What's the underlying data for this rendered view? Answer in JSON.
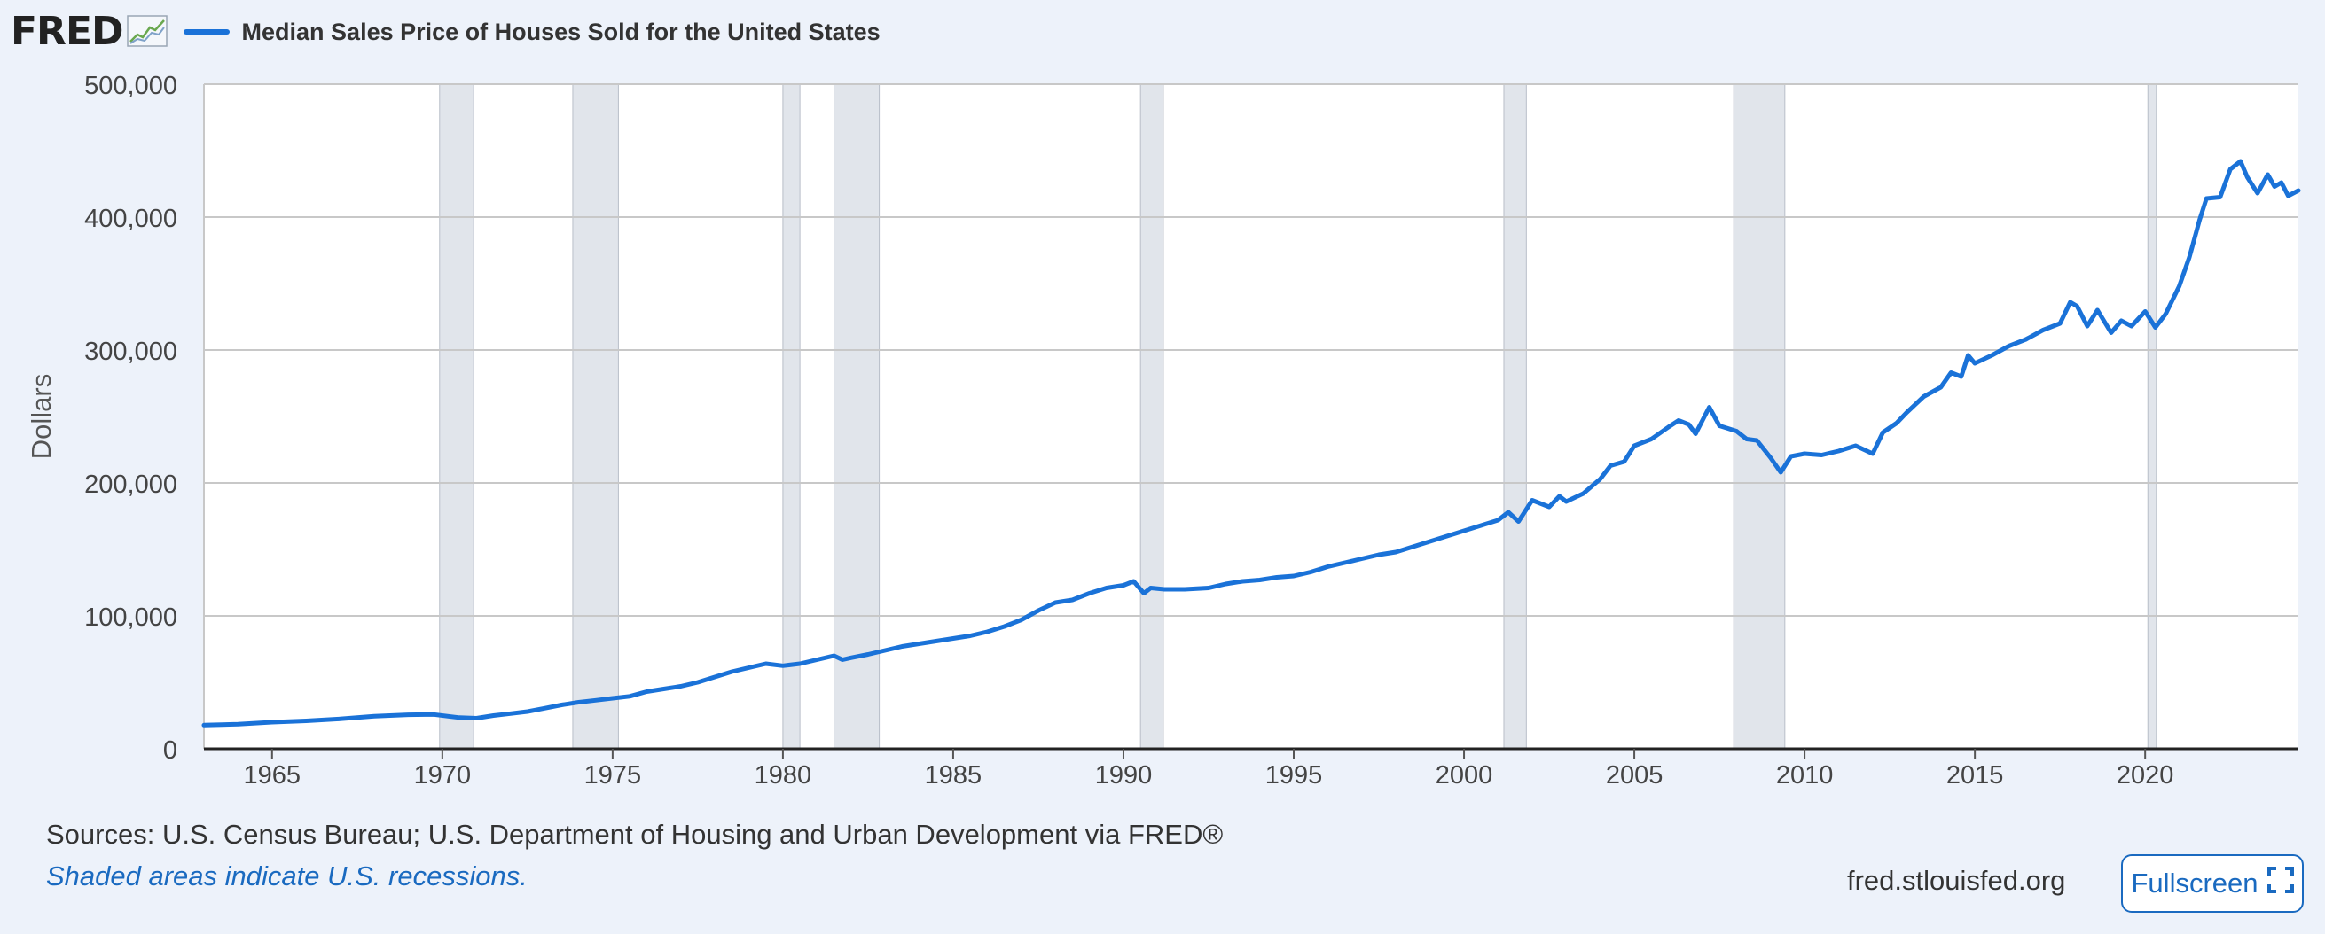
{
  "header": {
    "logo_text": "FRED",
    "legend_label": "Median Sales Price of Houses Sold for the United States"
  },
  "footer": {
    "sources": "Sources: U.S. Census Bureau; U.S. Department of Housing and Urban Development via FRED®",
    "recession_note": "Shaded areas indicate U.S. recessions.",
    "site": "fred.stlouisfed.org",
    "fullscreen_label": "Fullscreen"
  },
  "colors": {
    "line": "#1a72d8",
    "recession": "#e1e5eb",
    "grid": "#c8c8c8",
    "background": "#edf2fa",
    "link": "#1a6ac0"
  },
  "icons": {
    "logo_graph": "trend-graph-icon",
    "fullscreen": "fullscreen-icon"
  },
  "chart_data": {
    "type": "line",
    "title": "Median Sales Price of Houses Sold for the United States",
    "ylabel": "Dollars",
    "xlabel": "",
    "xlim": [
      1963.0,
      2024.5
    ],
    "ylim": [
      0,
      500000
    ],
    "grid": true,
    "legend_position": "top-left",
    "x_ticks": [
      1965,
      1970,
      1975,
      1980,
      1985,
      1990,
      1995,
      2000,
      2005,
      2010,
      2015,
      2020
    ],
    "x_tick_labels": [
      "1965",
      "1970",
      "1975",
      "1980",
      "1985",
      "1990",
      "1995",
      "2000",
      "2005",
      "2010",
      "2015",
      "2020"
    ],
    "y_ticks": [
      0,
      100000,
      200000,
      300000,
      400000,
      500000
    ],
    "y_tick_labels": [
      "0",
      "100,000",
      "200,000",
      "300,000",
      "400,000",
      "500,000"
    ],
    "recessions": [
      [
        1969.92,
        1970.92
      ],
      [
        1973.83,
        1975.17
      ],
      [
        1980.0,
        1980.5
      ],
      [
        1981.5,
        1982.83
      ],
      [
        1990.5,
        1991.17
      ],
      [
        2001.17,
        2001.83
      ],
      [
        2007.92,
        2009.42
      ],
      [
        2020.08,
        2020.33
      ]
    ],
    "series": [
      {
        "name": "Median Sales Price of Houses Sold for the United States",
        "points": [
          [
            1963.0,
            17800
          ],
          [
            1964.0,
            18500
          ],
          [
            1965.0,
            20000
          ],
          [
            1966.0,
            21000
          ],
          [
            1967.0,
            22500
          ],
          [
            1968.0,
            24500
          ],
          [
            1969.0,
            25600
          ],
          [
            1969.75,
            25800
          ],
          [
            1970.5,
            23500
          ],
          [
            1971.0,
            23000
          ],
          [
            1971.5,
            25000
          ],
          [
            1972.0,
            26500
          ],
          [
            1972.5,
            28000
          ],
          [
            1973.0,
            30500
          ],
          [
            1973.5,
            33000
          ],
          [
            1974.0,
            35000
          ],
          [
            1974.5,
            36500
          ],
          [
            1975.0,
            38000
          ],
          [
            1975.5,
            39500
          ],
          [
            1976.0,
            43000
          ],
          [
            1976.5,
            45000
          ],
          [
            1977.0,
            47000
          ],
          [
            1977.5,
            50000
          ],
          [
            1978.0,
            54000
          ],
          [
            1978.5,
            58000
          ],
          [
            1979.0,
            61000
          ],
          [
            1979.5,
            64000
          ],
          [
            1980.0,
            62500
          ],
          [
            1980.5,
            64000
          ],
          [
            1981.0,
            67000
          ],
          [
            1981.5,
            70000
          ],
          [
            1981.75,
            67000
          ],
          [
            1982.0,
            68500
          ],
          [
            1982.5,
            71000
          ],
          [
            1983.0,
            74000
          ],
          [
            1983.5,
            77000
          ],
          [
            1984.0,
            79000
          ],
          [
            1984.5,
            81000
          ],
          [
            1985.0,
            83000
          ],
          [
            1985.5,
            85000
          ],
          [
            1986.0,
            88000
          ],
          [
            1986.5,
            92000
          ],
          [
            1987.0,
            97000
          ],
          [
            1987.5,
            104000
          ],
          [
            1988.0,
            110000
          ],
          [
            1988.5,
            112000
          ],
          [
            1989.0,
            117000
          ],
          [
            1989.5,
            121000
          ],
          [
            1990.0,
            123000
          ],
          [
            1990.3,
            126000
          ],
          [
            1990.6,
            117000
          ],
          [
            1990.8,
            121000
          ],
          [
            1991.2,
            120000
          ],
          [
            1991.8,
            120000
          ],
          [
            1992.5,
            121000
          ],
          [
            1993.0,
            124000
          ],
          [
            1993.5,
            126000
          ],
          [
            1994.0,
            127000
          ],
          [
            1994.5,
            129000
          ],
          [
            1995.0,
            130000
          ],
          [
            1995.5,
            133000
          ],
          [
            1996.0,
            137000
          ],
          [
            1996.5,
            140000
          ],
          [
            1997.0,
            143000
          ],
          [
            1997.5,
            146000
          ],
          [
            1998.0,
            148000
          ],
          [
            1998.5,
            152000
          ],
          [
            1999.0,
            156000
          ],
          [
            1999.5,
            160000
          ],
          [
            2000.0,
            164000
          ],
          [
            2000.5,
            168000
          ],
          [
            2001.0,
            172000
          ],
          [
            2001.3,
            178000
          ],
          [
            2001.6,
            171000
          ],
          [
            2002.0,
            187000
          ],
          [
            2002.5,
            182000
          ],
          [
            2002.8,
            190000
          ],
          [
            2003.0,
            186000
          ],
          [
            2003.5,
            192000
          ],
          [
            2004.0,
            203000
          ],
          [
            2004.3,
            213000
          ],
          [
            2004.7,
            216000
          ],
          [
            2005.0,
            228000
          ],
          [
            2005.5,
            233000
          ],
          [
            2006.0,
            242000
          ],
          [
            2006.3,
            247000
          ],
          [
            2006.6,
            244000
          ],
          [
            2006.8,
            237000
          ],
          [
            2007.2,
            257000
          ],
          [
            2007.5,
            243000
          ],
          [
            2008.0,
            239000
          ],
          [
            2008.3,
            233000
          ],
          [
            2008.6,
            232000
          ],
          [
            2009.0,
            219000
          ],
          [
            2009.3,
            208000
          ],
          [
            2009.6,
            220000
          ],
          [
            2010.0,
            222000
          ],
          [
            2010.5,
            221000
          ],
          [
            2011.0,
            224000
          ],
          [
            2011.5,
            228000
          ],
          [
            2012.0,
            222000
          ],
          [
            2012.3,
            238000
          ],
          [
            2012.7,
            245000
          ],
          [
            2013.0,
            253000
          ],
          [
            2013.5,
            265000
          ],
          [
            2014.0,
            272000
          ],
          [
            2014.3,
            283000
          ],
          [
            2014.6,
            280000
          ],
          [
            2014.8,
            296000
          ],
          [
            2015.0,
            290000
          ],
          [
            2015.5,
            296000
          ],
          [
            2016.0,
            303000
          ],
          [
            2016.5,
            308000
          ],
          [
            2017.0,
            315000
          ],
          [
            2017.5,
            320000
          ],
          [
            2017.8,
            336000
          ],
          [
            2018.0,
            333000
          ],
          [
            2018.3,
            318000
          ],
          [
            2018.6,
            330000
          ],
          [
            2019.0,
            313000
          ],
          [
            2019.3,
            322000
          ],
          [
            2019.6,
            318000
          ],
          [
            2020.0,
            329000
          ],
          [
            2020.3,
            317000
          ],
          [
            2020.6,
            327000
          ],
          [
            2021.0,
            348000
          ],
          [
            2021.3,
            370000
          ],
          [
            2021.6,
            398000
          ],
          [
            2021.8,
            414000
          ],
          [
            2022.2,
            415000
          ],
          [
            2022.5,
            436000
          ],
          [
            2022.8,
            442000
          ],
          [
            2023.0,
            430000
          ],
          [
            2023.3,
            418000
          ],
          [
            2023.6,
            432000
          ],
          [
            2023.8,
            423000
          ],
          [
            2024.0,
            426000
          ],
          [
            2024.2,
            416000
          ],
          [
            2024.5,
            420000
          ]
        ]
      }
    ]
  }
}
